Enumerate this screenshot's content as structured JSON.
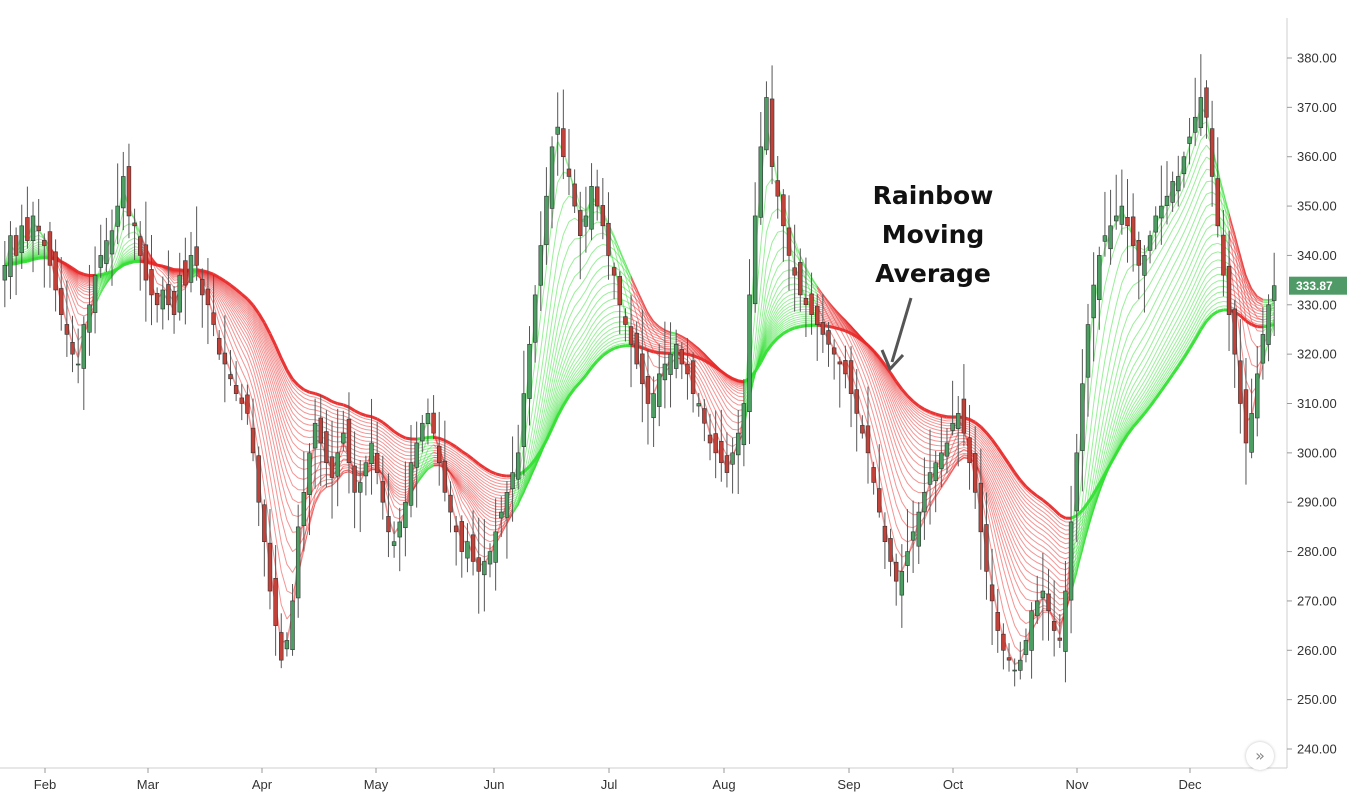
{
  "chart_data": {
    "type": "candlestick",
    "title": "",
    "annotation": [
      "Rainbow",
      "Moving",
      "Average"
    ],
    "y_axis": {
      "position": "right",
      "range": [
        236,
        390
      ],
      "ticks": [
        "240.00",
        "250.00",
        "260.00",
        "270.00",
        "280.00",
        "290.00",
        "300.00",
        "310.00",
        "320.00",
        "330.00",
        "340.00",
        "350.00",
        "360.00",
        "370.00",
        "380.00"
      ]
    },
    "x_axis": {
      "month_labels": [
        "Feb",
        "Mar",
        "Apr",
        "May",
        "Jun",
        "Jul",
        "Aug",
        "Sep",
        "Oct",
        "Nov",
        "Dec"
      ]
    },
    "last_price": "333.87",
    "colors": {
      "up": "#4c9e62",
      "down": "#c2423a",
      "ma_up": "#33e033",
      "ma_down": "#e82a2a",
      "price_tag": "#4f9a67"
    },
    "close_series": [
      338,
      344,
      340,
      346,
      343,
      348,
      345,
      342,
      338,
      333,
      328,
      324,
      320,
      318,
      326,
      330,
      336,
      340,
      343,
      345,
      350,
      356,
      348,
      346,
      340,
      335,
      332,
      330,
      333,
      330,
      328,
      336,
      334,
      340,
      338,
      332,
      330,
      326,
      320,
      318,
      315,
      312,
      310,
      308,
      300,
      290,
      282,
      272,
      265,
      258,
      262,
      270,
      285,
      292,
      300,
      306,
      302,
      298,
      295,
      300,
      304,
      298,
      292,
      294,
      298,
      302,
      296,
      290,
      284,
      282,
      286,
      290,
      298,
      302,
      306,
      308,
      304,
      298,
      292,
      288,
      284,
      280,
      282,
      278,
      276,
      278,
      280,
      284,
      288,
      292,
      296,
      300,
      312,
      322,
      332,
      342,
      352,
      362,
      366,
      360,
      356,
      350,
      344,
      348,
      354,
      350,
      346,
      340,
      336,
      330,
      326,
      322,
      318,
      314,
      310,
      312,
      316,
      318,
      320,
      322,
      318,
      316,
      312,
      310,
      306,
      302,
      300,
      298,
      296,
      300,
      304,
      310,
      332,
      348,
      362,
      372,
      358,
      352,
      346,
      340,
      336,
      332,
      330,
      328,
      326,
      324,
      322,
      320,
      318,
      316,
      312,
      308,
      304,
      300,
      294,
      288,
      282,
      278,
      274,
      276,
      280,
      284,
      288,
      292,
      296,
      298,
      300,
      302,
      306,
      308,
      304,
      298,
      292,
      284,
      276,
      270,
      264,
      260,
      258,
      256,
      258,
      262,
      268,
      270,
      272,
      268,
      264,
      262,
      272,
      286,
      300,
      314,
      326,
      334,
      340,
      344,
      346,
      348,
      350,
      346,
      342,
      338,
      340,
      344,
      348,
      350,
      352,
      355,
      356,
      360,
      364,
      368,
      372,
      368,
      356,
      346,
      336,
      328,
      320,
      310,
      302,
      308,
      316,
      324,
      330,
      333.87
    ]
  }
}
